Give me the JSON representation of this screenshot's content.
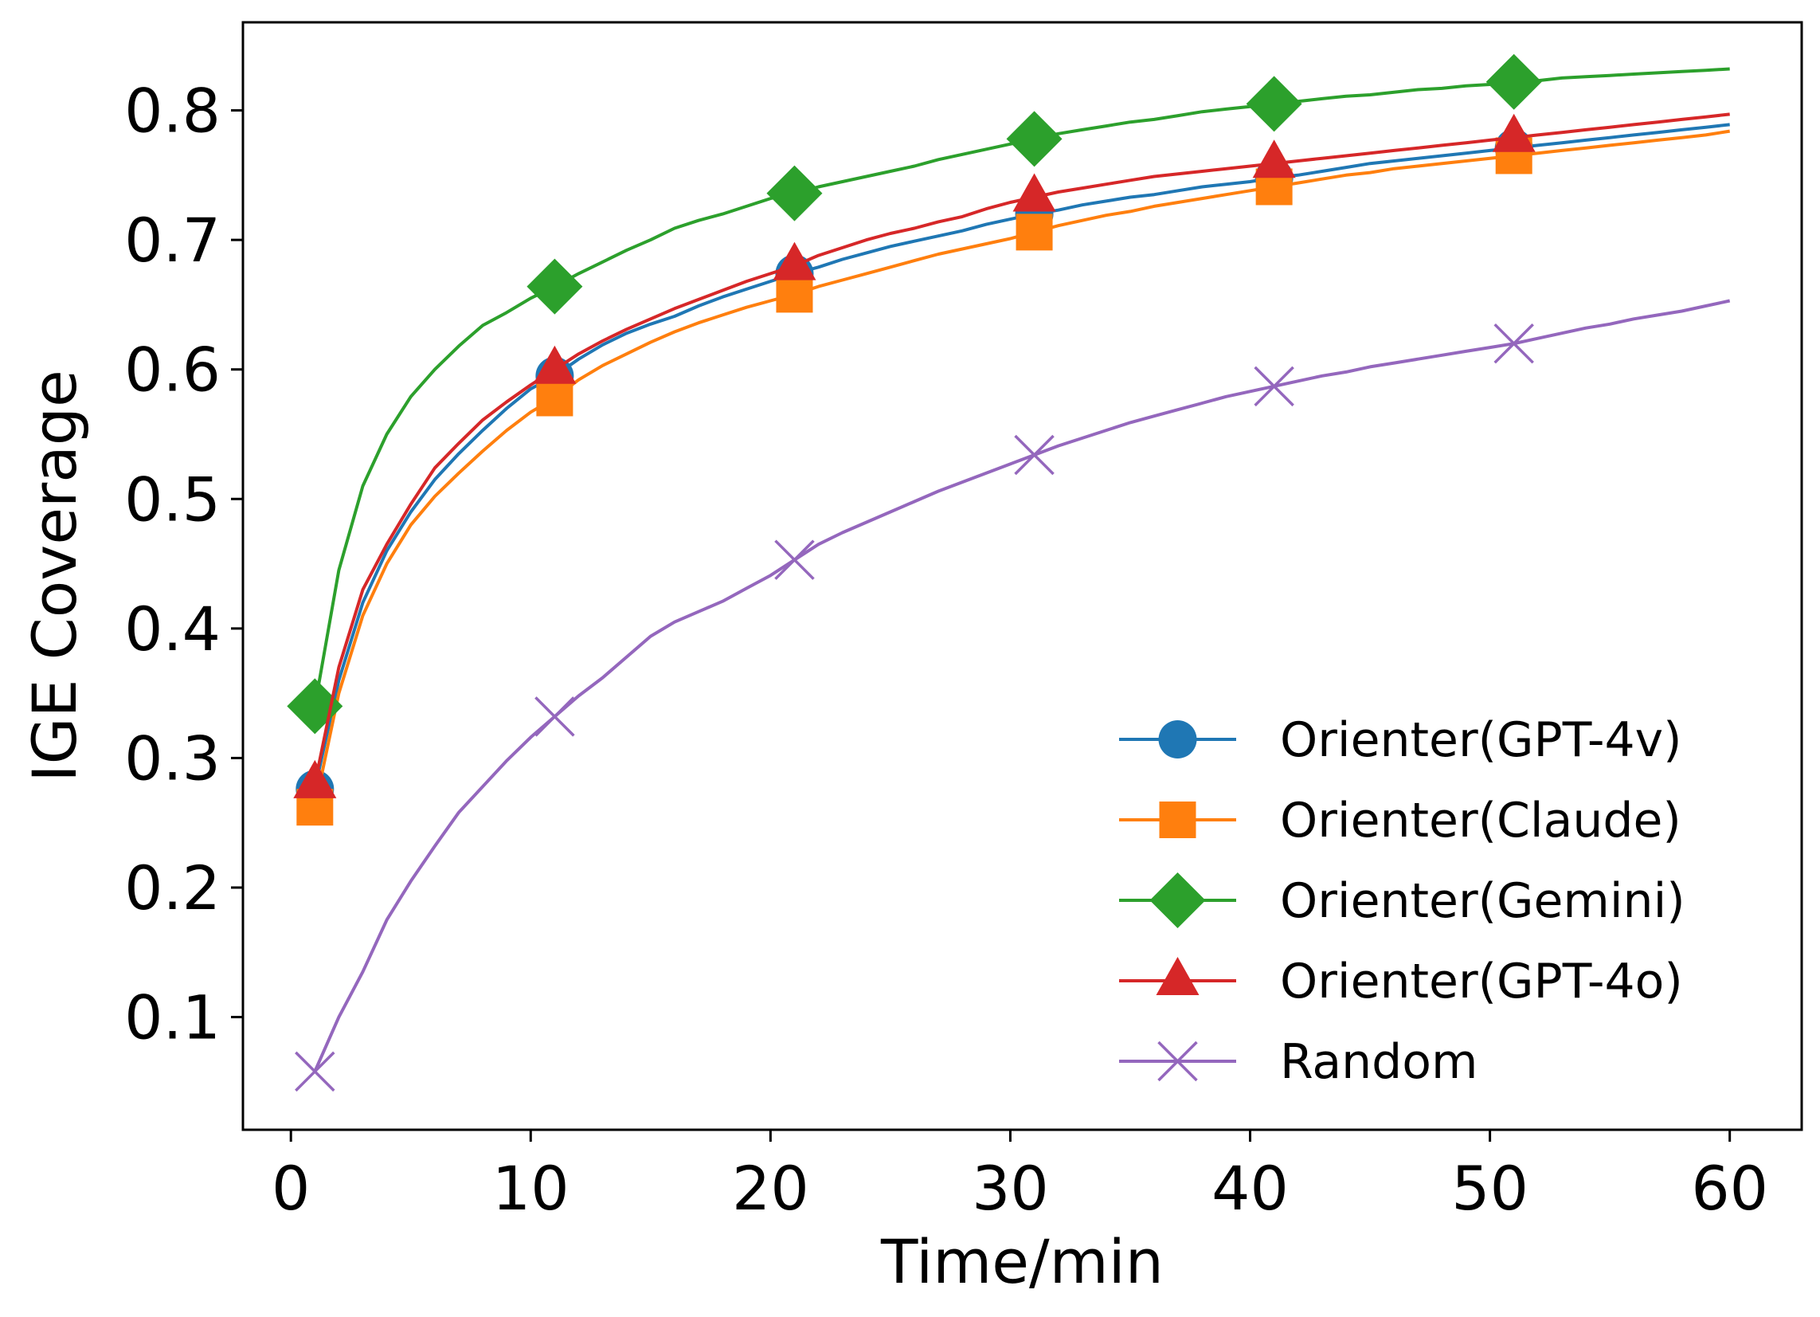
{
  "chart_data": {
    "type": "line",
    "title": "",
    "xlabel": "Time/min",
    "ylabel": "IGE Coverage",
    "xlim": [
      -2,
      63
    ],
    "ylim": [
      0.013,
      0.868
    ],
    "xticks": [
      0,
      10,
      20,
      30,
      40,
      50,
      60
    ],
    "xtick_labels": [
      "0",
      "10",
      "20",
      "30",
      "40",
      "50",
      "60"
    ],
    "yticks": [
      0.1,
      0.2,
      0.3,
      0.4,
      0.5,
      0.6,
      0.7,
      0.8
    ],
    "ytick_labels": [
      "0.1",
      "0.2",
      "0.3",
      "0.4",
      "0.5",
      "0.6",
      "0.7",
      "0.8"
    ],
    "grid": false,
    "legend_position": "lower-right",
    "x": [
      1,
      2,
      3,
      4,
      5,
      6,
      7,
      8,
      9,
      10,
      11,
      12,
      13,
      14,
      15,
      16,
      17,
      18,
      19,
      20,
      21,
      22,
      23,
      24,
      25,
      26,
      27,
      28,
      29,
      30,
      31,
      32,
      33,
      34,
      35,
      36,
      37,
      38,
      39,
      40,
      41,
      42,
      43,
      44,
      45,
      46,
      47,
      48,
      49,
      50,
      51,
      52,
      53,
      54,
      55,
      56,
      57,
      58,
      59,
      60
    ],
    "marker_x": [
      1,
      11,
      21,
      31,
      41,
      51
    ],
    "series": [
      {
        "name": "Orienter(GPT-4v)",
        "color": "#1f77b4",
        "marker": "circle",
        "values": [
          0.276,
          0.36,
          0.42,
          0.46,
          0.49,
          0.515,
          0.535,
          0.553,
          0.57,
          0.585,
          0.595,
          0.608,
          0.619,
          0.628,
          0.635,
          0.641,
          0.649,
          0.656,
          0.662,
          0.668,
          0.674,
          0.679,
          0.685,
          0.69,
          0.695,
          0.699,
          0.703,
          0.707,
          0.712,
          0.716,
          0.72,
          0.723,
          0.727,
          0.73,
          0.733,
          0.735,
          0.738,
          0.741,
          0.743,
          0.745,
          0.748,
          0.75,
          0.753,
          0.756,
          0.759,
          0.761,
          0.763,
          0.765,
          0.767,
          0.769,
          0.771,
          0.773,
          0.775,
          0.777,
          0.779,
          0.781,
          0.783,
          0.785,
          0.787,
          0.789
        ]
      },
      {
        "name": "Orienter(Claude)",
        "color": "#ff7f0e",
        "marker": "square",
        "values": [
          0.262,
          0.35,
          0.41,
          0.45,
          0.48,
          0.502,
          0.52,
          0.537,
          0.553,
          0.567,
          0.578,
          0.592,
          0.603,
          0.612,
          0.621,
          0.629,
          0.636,
          0.642,
          0.648,
          0.653,
          0.658,
          0.664,
          0.669,
          0.674,
          0.679,
          0.684,
          0.689,
          0.693,
          0.697,
          0.701,
          0.706,
          0.711,
          0.715,
          0.719,
          0.722,
          0.726,
          0.729,
          0.732,
          0.735,
          0.738,
          0.741,
          0.744,
          0.747,
          0.75,
          0.752,
          0.755,
          0.757,
          0.759,
          0.761,
          0.763,
          0.765,
          0.767,
          0.769,
          0.771,
          0.773,
          0.775,
          0.777,
          0.779,
          0.781,
          0.784
        ]
      },
      {
        "name": "Orienter(Gemini)",
        "color": "#2ca02c",
        "marker": "diamond",
        "values": [
          0.34,
          0.445,
          0.51,
          0.55,
          0.579,
          0.6,
          0.618,
          0.634,
          0.644,
          0.655,
          0.664,
          0.674,
          0.683,
          0.692,
          0.7,
          0.709,
          0.715,
          0.72,
          0.726,
          0.732,
          0.736,
          0.741,
          0.745,
          0.749,
          0.753,
          0.757,
          0.762,
          0.766,
          0.77,
          0.774,
          0.778,
          0.782,
          0.785,
          0.788,
          0.791,
          0.793,
          0.796,
          0.799,
          0.801,
          0.803,
          0.805,
          0.807,
          0.809,
          0.811,
          0.812,
          0.814,
          0.816,
          0.817,
          0.819,
          0.82,
          0.822,
          0.823,
          0.825,
          0.826,
          0.827,
          0.828,
          0.829,
          0.83,
          0.831,
          0.832
        ]
      },
      {
        "name": "Orienter(GPT-4o)",
        "color": "#d62728",
        "marker": "triangle",
        "values": [
          0.28,
          0.37,
          0.43,
          0.465,
          0.496,
          0.524,
          0.543,
          0.561,
          0.575,
          0.588,
          0.6,
          0.612,
          0.622,
          0.631,
          0.639,
          0.647,
          0.654,
          0.661,
          0.668,
          0.674,
          0.68,
          0.688,
          0.694,
          0.7,
          0.705,
          0.709,
          0.714,
          0.718,
          0.724,
          0.729,
          0.733,
          0.737,
          0.74,
          0.743,
          0.746,
          0.749,
          0.751,
          0.753,
          0.755,
          0.757,
          0.759,
          0.761,
          0.763,
          0.765,
          0.767,
          0.769,
          0.771,
          0.773,
          0.775,
          0.777,
          0.779,
          0.781,
          0.783,
          0.785,
          0.787,
          0.789,
          0.791,
          0.793,
          0.795,
          0.797
        ]
      },
      {
        "name": "Random",
        "color": "#9467bd",
        "marker": "x",
        "values": [
          0.058,
          0.1,
          0.135,
          0.175,
          0.205,
          0.232,
          0.258,
          0.278,
          0.298,
          0.316,
          0.332,
          0.348,
          0.362,
          0.378,
          0.394,
          0.405,
          0.413,
          0.421,
          0.431,
          0.441,
          0.453,
          0.465,
          0.474,
          0.482,
          0.49,
          0.498,
          0.506,
          0.513,
          0.52,
          0.527,
          0.534,
          0.541,
          0.547,
          0.553,
          0.559,
          0.564,
          0.569,
          0.574,
          0.579,
          0.583,
          0.587,
          0.591,
          0.595,
          0.598,
          0.602,
          0.605,
          0.608,
          0.611,
          0.614,
          0.617,
          0.62,
          0.624,
          0.628,
          0.632,
          0.635,
          0.639,
          0.642,
          0.645,
          0.649,
          0.653
        ]
      }
    ]
  }
}
